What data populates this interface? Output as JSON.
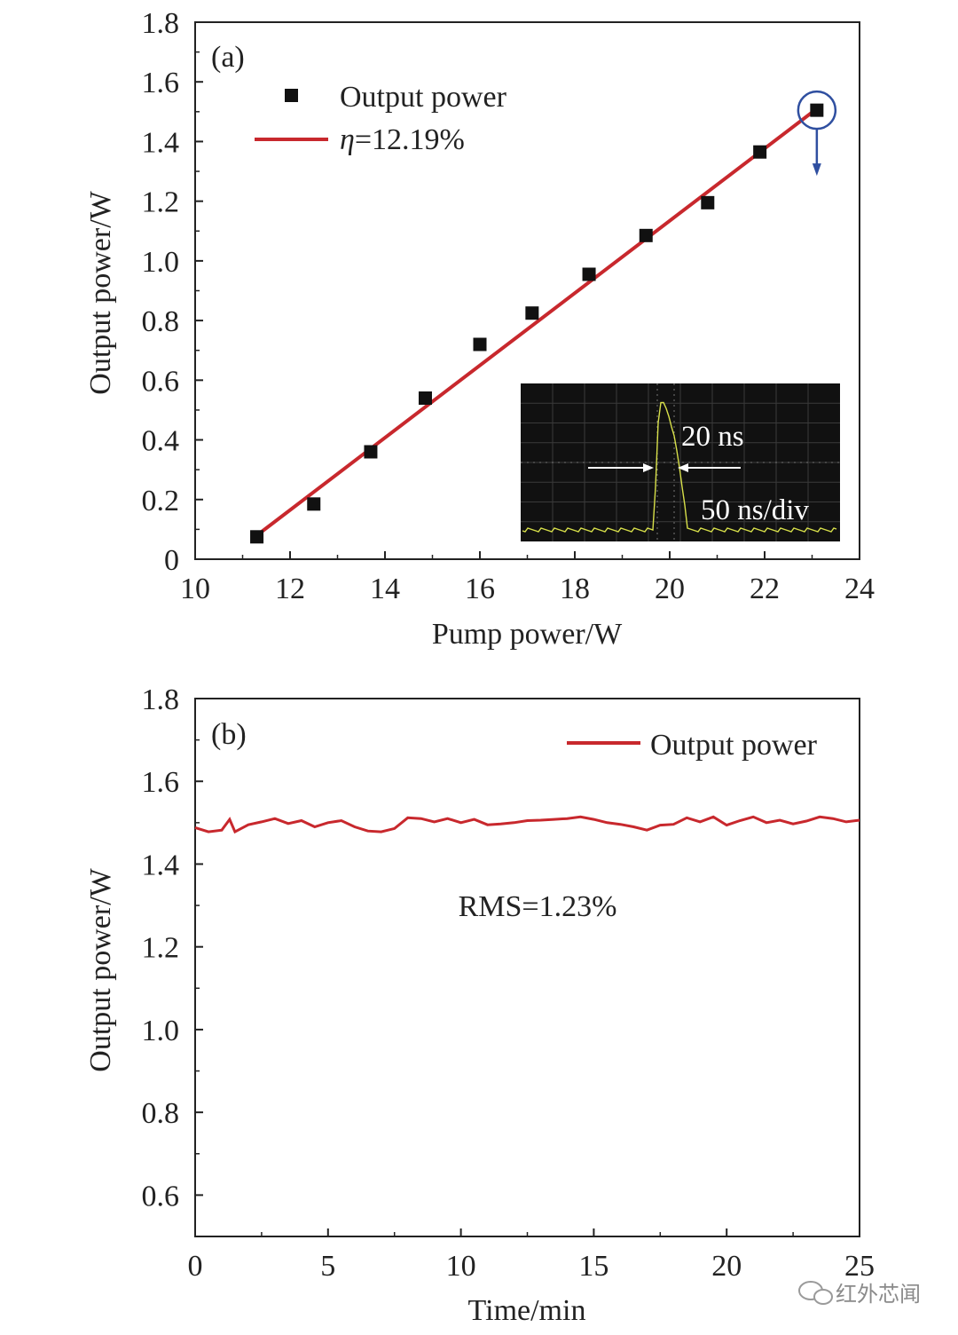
{
  "chart_data": [
    {
      "panel": "(a)",
      "type": "scatter",
      "xlabel": "Pump power/W",
      "ylabel": "Output power/W",
      "xlim": [
        10,
        24
      ],
      "ylim": [
        0,
        1.8
      ],
      "xticks": [
        "10",
        "12",
        "14",
        "16",
        "18",
        "20",
        "22",
        "24"
      ],
      "yticks": [
        "0",
        "0.2",
        "0.4",
        "0.6",
        "0.8",
        "1.0",
        "1.2",
        "1.4",
        "1.6",
        "1.8"
      ],
      "series": [
        {
          "name": "Output power",
          "marker": "square",
          "color": "#111111",
          "x": [
            11.3,
            12.5,
            13.7,
            14.85,
            16.0,
            17.1,
            18.3,
            19.5,
            20.8,
            21.9,
            23.1
          ],
          "y": [
            0.075,
            0.185,
            0.36,
            0.54,
            0.72,
            0.825,
            0.955,
            1.085,
            1.195,
            1.365,
            1.505
          ]
        },
        {
          "name": "η=12.19%",
          "name_symbol": "η",
          "name_value": "=12.19%",
          "type": "line",
          "color": "#c8282d",
          "x": [
            11.3,
            23.1
          ],
          "y": [
            0.08,
            1.51
          ]
        }
      ],
      "legend": "top-left",
      "annotation": {
        "type": "circle-arrow",
        "x": 23.1,
        "y": 1.505,
        "color": "#2f4fa0"
      },
      "inset": {
        "type": "oscilloscope-trace",
        "labels": [
          "20 ns",
          "50 ns/div"
        ],
        "background": "#111111",
        "trace_color": "#d8e04a"
      }
    },
    {
      "panel": "(b)",
      "type": "line",
      "xlabel": "Time/min",
      "ylabel": "Output power/W",
      "xlim": [
        0,
        25
      ],
      "ylim": [
        0.5,
        1.8
      ],
      "xticks": [
        "0",
        "5",
        "10",
        "15",
        "20",
        "25"
      ],
      "yticks": [
        "0.6",
        "0.8",
        "1.0",
        "1.2",
        "1.4",
        "1.6",
        "1.8"
      ],
      "annotation_text": "RMS=1.23%",
      "legend": "top-right",
      "series": [
        {
          "name": "Output power",
          "color": "#c8282d",
          "x": [
            0,
            0.5,
            1.0,
            1.3,
            1.5,
            2.0,
            2.5,
            3.0,
            3.5,
            4.0,
            4.5,
            5.0,
            5.5,
            6.0,
            6.5,
            7.0,
            7.5,
            8.0,
            8.5,
            9.0,
            9.5,
            10.0,
            10.5,
            11.0,
            11.5,
            12.0,
            12.5,
            13.0,
            13.5,
            14.0,
            14.5,
            15.0,
            15.5,
            16.0,
            16.5,
            17.0,
            17.5,
            18.0,
            18.5,
            19.0,
            19.5,
            20.0,
            20.5,
            21.0,
            21.5,
            22.0,
            22.5,
            23.0,
            23.5,
            24.0,
            24.5,
            25.0
          ],
          "y": [
            1.488,
            1.478,
            1.482,
            1.508,
            1.478,
            1.495,
            1.502,
            1.51,
            1.498,
            1.505,
            1.49,
            1.5,
            1.505,
            1.49,
            1.48,
            1.478,
            1.486,
            1.512,
            1.51,
            1.502,
            1.51,
            1.5,
            1.508,
            1.495,
            1.497,
            1.5,
            1.505,
            1.506,
            1.508,
            1.51,
            1.514,
            1.508,
            1.5,
            1.496,
            1.49,
            1.482,
            1.494,
            1.496,
            1.512,
            1.502,
            1.514,
            1.494,
            1.505,
            1.514,
            1.5,
            1.506,
            1.497,
            1.504,
            1.514,
            1.51,
            1.502,
            1.506
          ]
        }
      ]
    }
  ],
  "watermark": {
    "text": "红外芯闻",
    "icon": "wechat-icon"
  }
}
